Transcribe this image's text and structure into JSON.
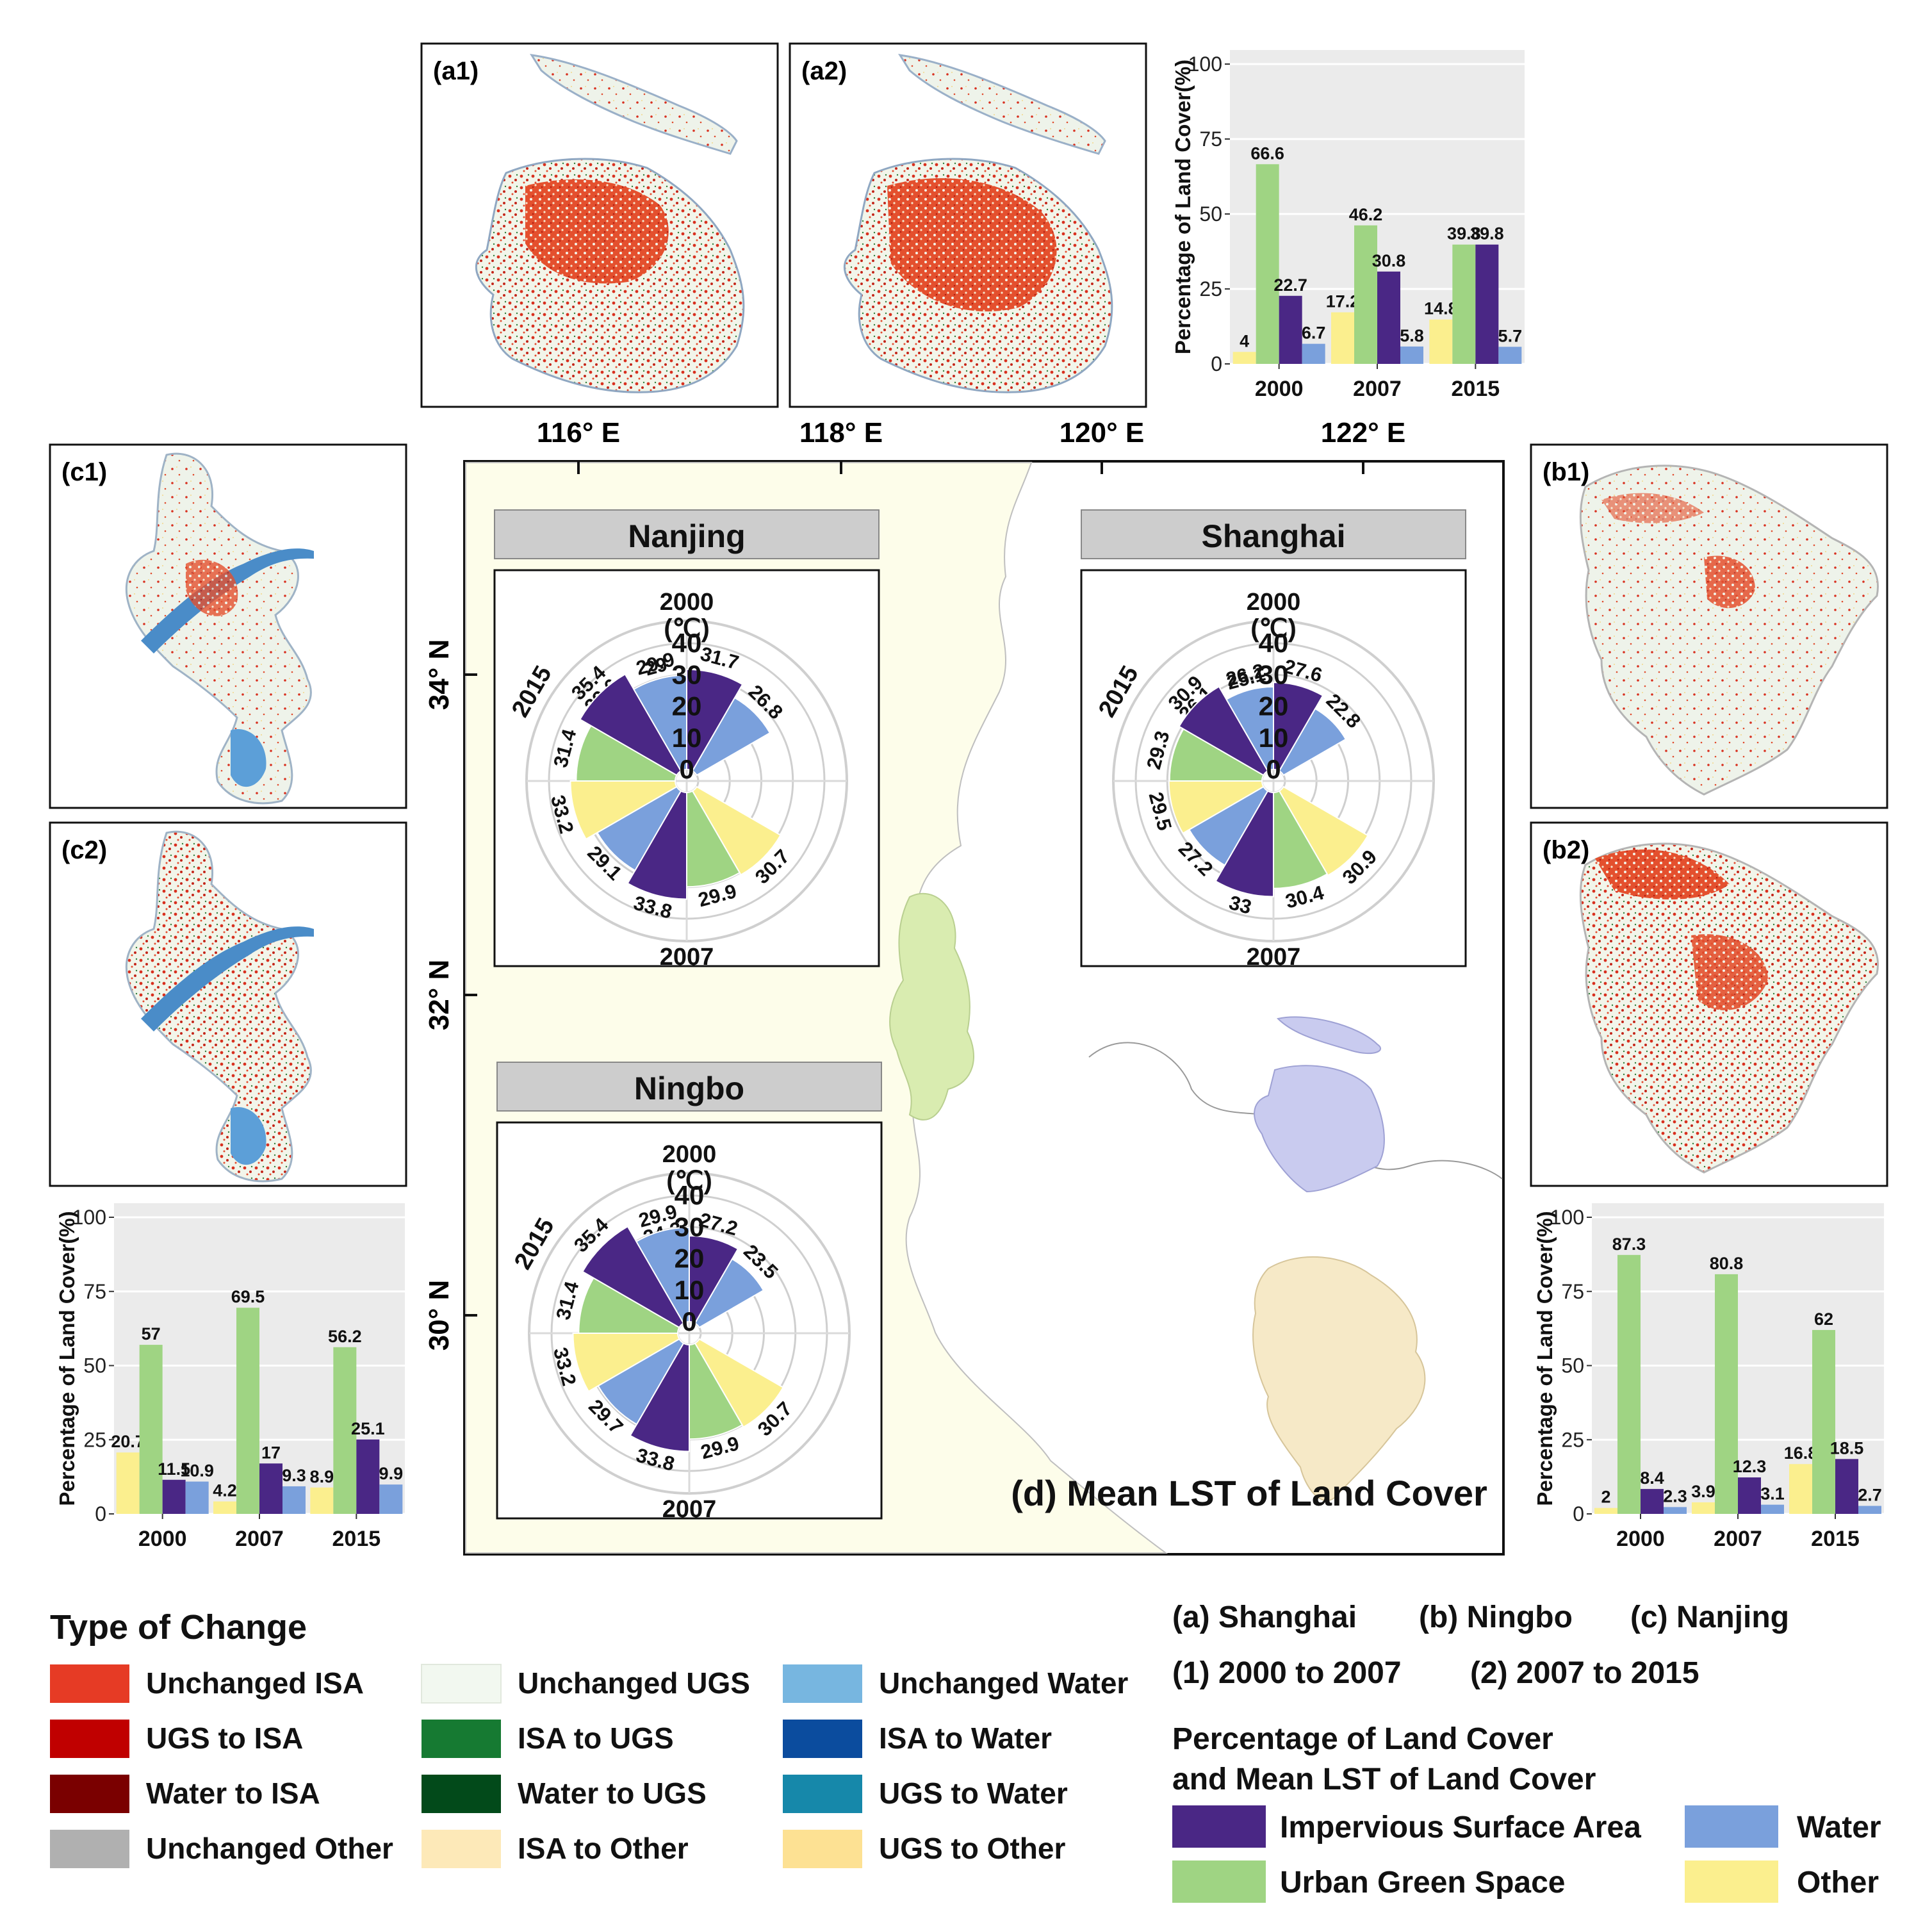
{
  "colors": {
    "isa": "#4a2785",
    "ugs": "#9fd483",
    "water": "#7aa0dc",
    "other": "#fbef8e",
    "panel_bg": "#ebebeb",
    "grid": "#ffffff",
    "title_bar": "#cdcdcd",
    "map_bg": "#fdfdea",
    "nanjing_fill": "#d9ecb0",
    "shanghai_fill": "#c9cbef",
    "ningbo_fill": "#f6e9c7"
  },
  "panel_labels": {
    "a1": "(a1)",
    "a2": "(a2)",
    "b1": "(b1)",
    "b2": "(b2)",
    "c1": "(c1)",
    "c2": "(c2)"
  },
  "axes": {
    "lon": [
      "116° E",
      "118° E",
      "120° E",
      "122° E"
    ],
    "lat": [
      "34° N",
      "32° N",
      "30° N"
    ]
  },
  "map_title": "(d) Mean LST of Land Cover",
  "chart_data": [
    {
      "id": "shanghai_bar",
      "type": "bar",
      "ylabel": "Percentage of Land Cover(%)",
      "ylim": [
        0,
        100
      ],
      "yticks": [
        "0",
        "25",
        "50",
        "75",
        "100"
      ],
      "categories": [
        "2000",
        "2007",
        "2015"
      ],
      "series": [
        {
          "name": "Other",
          "color": "#fbef8e",
          "values": [
            4,
            17.2,
            14.8
          ],
          "labels": [
            "4",
            "17.2",
            "14.8"
          ]
        },
        {
          "name": "Urban Green Space",
          "color": "#9fd483",
          "values": [
            66.6,
            46.2,
            39.8
          ],
          "labels": [
            "66.6",
            "46.2",
            "39.8"
          ]
        },
        {
          "name": "Impervious Surface Area",
          "color": "#4a2785",
          "values": [
            22.7,
            30.8,
            39.8
          ],
          "labels": [
            "22.7",
            "30.8",
            "39.8"
          ]
        },
        {
          "name": "Water",
          "color": "#7aa0dc",
          "values": [
            6.7,
            5.8,
            5.7
          ],
          "labels": [
            "6.7",
            "5.8",
            "5.7"
          ]
        }
      ]
    },
    {
      "id": "nanjing_bar",
      "type": "bar",
      "ylabel": "Percentage of Land Cover(%)",
      "ylim": [
        0,
        100
      ],
      "yticks": [
        "0",
        "25",
        "50",
        "75",
        "100"
      ],
      "categories": [
        "2000",
        "2007",
        "2015"
      ],
      "series": [
        {
          "name": "Other",
          "color": "#fbef8e",
          "values": [
            20.7,
            4.2,
            8.9
          ],
          "labels": [
            "20.7",
            "4.2",
            "8.9"
          ]
        },
        {
          "name": "Urban Green Space",
          "color": "#9fd483",
          "values": [
            57,
            69.5,
            56.2
          ],
          "labels": [
            "57",
            "69.5",
            "56.2"
          ]
        },
        {
          "name": "Impervious Surface Area",
          "color": "#4a2785",
          "values": [
            11.5,
            17,
            25.1
          ],
          "labels": [
            "11.5",
            "17",
            "25.1"
          ]
        },
        {
          "name": "Water",
          "color": "#7aa0dc",
          "values": [
            10.9,
            9.3,
            9.9
          ],
          "labels": [
            "10.9",
            "9.3",
            "9.9"
          ]
        }
      ]
    },
    {
      "id": "ningbo_bar",
      "type": "bar",
      "ylabel": "Percentage of Land Cover(%)",
      "ylim": [
        0,
        100
      ],
      "yticks": [
        "0",
        "25",
        "50",
        "75",
        "100"
      ],
      "categories": [
        "2000",
        "2007",
        "2015"
      ],
      "series": [
        {
          "name": "Other",
          "color": "#fbef8e",
          "values": [
            2,
            3.9,
            16.8
          ],
          "labels": [
            "2",
            "3.9",
            "16.8"
          ]
        },
        {
          "name": "Urban Green Space",
          "color": "#9fd483",
          "values": [
            87.3,
            80.8,
            62
          ],
          "labels": [
            "87.3",
            "80.8",
            "62"
          ]
        },
        {
          "name": "Impervious Surface Area",
          "color": "#4a2785",
          "values": [
            8.4,
            12.3,
            18.5
          ],
          "labels": [
            "8.4",
            "12.3",
            "18.5"
          ]
        },
        {
          "name": "Water",
          "color": "#7aa0dc",
          "values": [
            2.3,
            3.1,
            2.7
          ],
          "labels": [
            "2.3",
            "3.1",
            "2.7"
          ]
        }
      ]
    },
    {
      "id": "nanjing_polar",
      "type": "polar-bar",
      "title": "Nanjing",
      "unit": "(℃)",
      "rticks": [
        "0",
        "10",
        "20",
        "30",
        "40"
      ],
      "rmax": 40,
      "groups": [
        {
          "year": "2000",
          "values": {
            "other": 29.6,
            "ugs": 29,
            "isa": 31.7,
            "water": 26.8
          },
          "labels": {
            "other": "29.6",
            "ugs": "29",
            "isa": "31.7",
            "water": "26.8"
          }
        },
        {
          "year": "2007",
          "values": {
            "other": 30.7,
            "ugs": 29.9,
            "isa": 33.8,
            "water": 29.1
          },
          "labels": {
            "other": "30.7",
            "ugs": "29.9",
            "isa": "33.8",
            "water": "29.1"
          }
        },
        {
          "year": "2015",
          "values": {
            "other": 33.2,
            "ugs": 31.4,
            "isa": 35.4,
            "water": 29.9
          },
          "labels": {
            "other": "33.2",
            "ugs": "31.4",
            "isa": "35.4",
            "water": "29.9"
          }
        }
      ]
    },
    {
      "id": "shanghai_polar",
      "type": "polar-bar",
      "title": "Shanghai",
      "unit": "(℃)",
      "rticks": [
        "0",
        "10",
        "20",
        "30",
        "40"
      ],
      "rmax": 40,
      "groups": [
        {
          "year": "2000",
          "values": {
            "other": 26.1,
            "ugs": 25.1,
            "isa": 27.6,
            "water": 22.8
          },
          "labels": {
            "other": "26.1",
            "ugs": "25.1",
            "isa": "27.6",
            "water": "22.8"
          }
        },
        {
          "year": "2007",
          "values": {
            "other": 30.9,
            "ugs": 30.4,
            "isa": 33,
            "water": 27.2
          },
          "labels": {
            "other": "30.9",
            "ugs": "30.4",
            "isa": "33",
            "water": "27.2"
          }
        },
        {
          "year": "2015",
          "values": {
            "other": 29.5,
            "ugs": 29.3,
            "isa": 30.9,
            "water": 26.2
          },
          "labels": {
            "other": "29.5",
            "ugs": "29.3",
            "isa": "30.9",
            "water": "26.2"
          }
        }
      ]
    },
    {
      "id": "ningbo_polar",
      "type": "polar-bar",
      "title": "Ningbo",
      "unit": "(℃)",
      "rticks": [
        "0",
        "10",
        "20",
        "30",
        "40"
      ],
      "rmax": 40,
      "groups": [
        {
          "year": "2000",
          "values": {
            "other": 25.5,
            "ugs": 24.3,
            "isa": 27.2,
            "water": 23.5
          },
          "labels": {
            "other": "25.5",
            "ugs": "24.3",
            "isa": "27.2",
            "water": "23.5"
          }
        },
        {
          "year": "2007",
          "values": {
            "other": 30.7,
            "ugs": 29.9,
            "isa": 33.8,
            "water": 29.7
          },
          "labels": {
            "other": "30.7",
            "ugs": "29.9",
            "isa": "33.8",
            "water": "29.7"
          }
        },
        {
          "year": "2015",
          "values": {
            "other": 33.2,
            "ugs": 31.4,
            "isa": 35.4,
            "water": 29.9
          },
          "labels": {
            "other": "33.2",
            "ugs": "31.4",
            "isa": "35.4",
            "water": "29.9"
          }
        }
      ]
    }
  ],
  "change_legend": {
    "title": "Type of Change",
    "items": [
      {
        "label": "Unchanged ISA",
        "color": "#e63b25"
      },
      {
        "label": "UGS to ISA",
        "color": "#c00000"
      },
      {
        "label": "Water to ISA",
        "color": "#7a0000"
      },
      {
        "label": "Unchanged Other",
        "color": "#b0b0b0"
      },
      {
        "label": "Unchanged UGS",
        "color": "#f2f8f0"
      },
      {
        "label": "ISA to UGS",
        "color": "#167a32"
      },
      {
        "label": "Water to UGS",
        "color": "#024a1a"
      },
      {
        "label": "ISA to Other",
        "color": "#fde9b8"
      },
      {
        "label": "Unchanged Water",
        "color": "#77b6e0"
      },
      {
        "label": "ISA to Water",
        "color": "#0b4c9e"
      },
      {
        "label": "UGS to Water",
        "color": "#1688aa"
      },
      {
        "label": "UGS to Other",
        "color": "#fde193"
      }
    ]
  },
  "key": {
    "cities": [
      "(a) Shanghai",
      "(b) Ningbo",
      "(c) Nanjing"
    ],
    "periods": [
      "(1) 2000 to 2007",
      "(2) 2007 to 2015"
    ],
    "cover_title_1": "Percentage of Land Cover",
    "cover_title_2": "and Mean LST of Land Cover",
    "cover_items": [
      {
        "label": "Impervious Surface Area",
        "color": "#4a2785"
      },
      {
        "label": "Water",
        "color": "#7aa0dc"
      },
      {
        "label": "Urban Green Space",
        "color": "#9fd483"
      },
      {
        "label": "Other",
        "color": "#fbef8e"
      }
    ]
  }
}
